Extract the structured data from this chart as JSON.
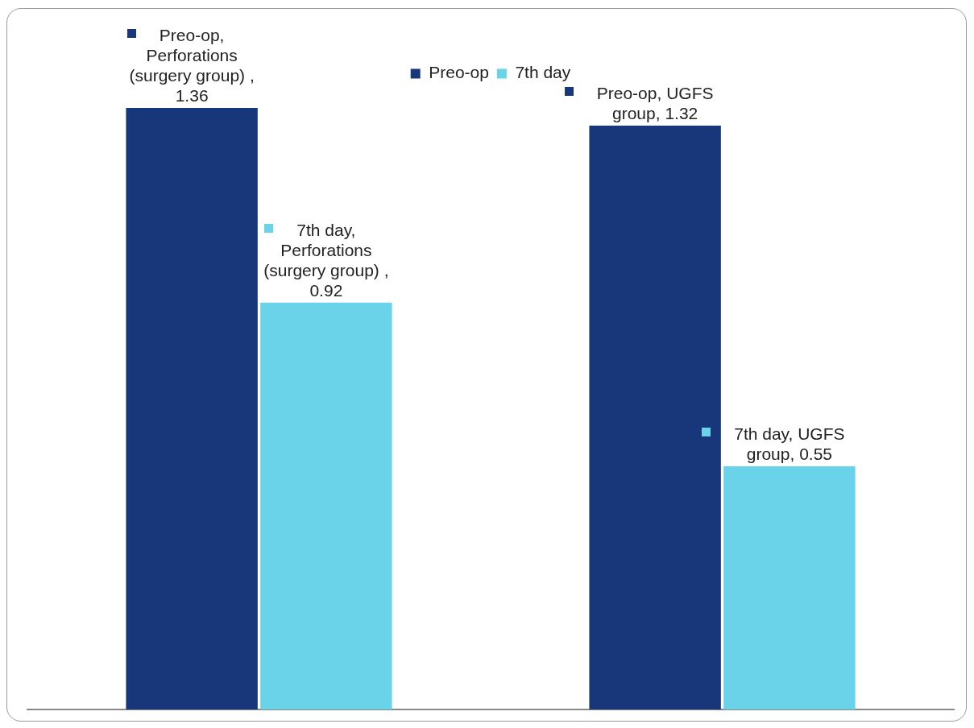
{
  "chart_data": {
    "type": "bar",
    "categories": [
      null,
      null
    ],
    "series": [
      {
        "name": "Preo-op",
        "color": "#17377a",
        "values": [
          1.36,
          1.32
        ],
        "value_labels": [
          "Preo-op, Perforations (surgery group) , 1.36",
          "Preo-op, UGFS group, 1.32"
        ]
      },
      {
        "name": "7th day",
        "color": "#6ad3ea",
        "values": [
          0.92,
          0.55
        ],
        "value_labels": [
          "7th day, Perforations (surgery group) , 0.92",
          "7th day, UGFS group, 0.55"
        ]
      }
    ],
    "legend": "top",
    "grid": false,
    "tick_labels": false
  }
}
